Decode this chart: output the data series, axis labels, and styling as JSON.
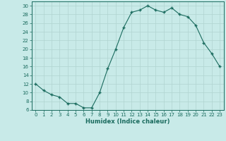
{
  "x": [
    0,
    1,
    2,
    3,
    4,
    5,
    6,
    7,
    8,
    9,
    10,
    11,
    12,
    13,
    14,
    15,
    16,
    17,
    18,
    19,
    20,
    21,
    22,
    23
  ],
  "y": [
    12,
    10.5,
    9.5,
    9,
    7.5,
    7.5,
    6.5,
    6.5,
    10,
    15.5,
    20,
    25,
    28.5,
    29,
    30,
    29,
    28.5,
    29.5,
    28,
    27.5,
    25.5,
    21.5,
    19,
    16
  ],
  "line_color": "#1a6b5e",
  "bg_color": "#c8eae8",
  "grid_color": "#b0d4d0",
  "xlabel": "Humidex (Indice chaleur)",
  "xlim": [
    -0.5,
    23.5
  ],
  "ylim": [
    6,
    31
  ],
  "yticks": [
    6,
    8,
    10,
    12,
    14,
    16,
    18,
    20,
    22,
    24,
    26,
    28,
    30
  ],
  "xticks": [
    0,
    1,
    2,
    3,
    4,
    5,
    6,
    7,
    8,
    9,
    10,
    11,
    12,
    13,
    14,
    15,
    16,
    17,
    18,
    19,
    20,
    21,
    22,
    23
  ]
}
